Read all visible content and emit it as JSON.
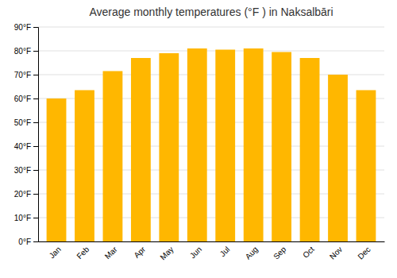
{
  "chart_data": {
    "type": "bar",
    "title": "Average monthly temperatures (°F ) in Naksalbāri",
    "categories": [
      "Jan",
      "Feb",
      "Mar",
      "Apr",
      "May",
      "Jun",
      "Jul",
      "Aug",
      "Sep",
      "Oct",
      "Nov",
      "Dec"
    ],
    "values": [
      60,
      63.5,
      71.5,
      77,
      79,
      81,
      80.5,
      81,
      79.5,
      77,
      70,
      63.5
    ],
    "color": "#FFB700",
    "ylim": [
      0,
      90
    ],
    "yticks": [
      {
        "value": 0,
        "label": "0°F"
      },
      {
        "value": 10,
        "label": "10°F"
      },
      {
        "value": 20,
        "label": "20°F"
      },
      {
        "value": 30,
        "label": "30°F"
      },
      {
        "value": 40,
        "label": "40°F"
      },
      {
        "value": 50,
        "label": "50°F"
      },
      {
        "value": 60,
        "label": "60°F"
      },
      {
        "value": 70,
        "label": "70°F"
      },
      {
        "value": 80,
        "label": "80°F"
      },
      {
        "value": 90,
        "label": "90°F"
      }
    ],
    "grid": true
  }
}
